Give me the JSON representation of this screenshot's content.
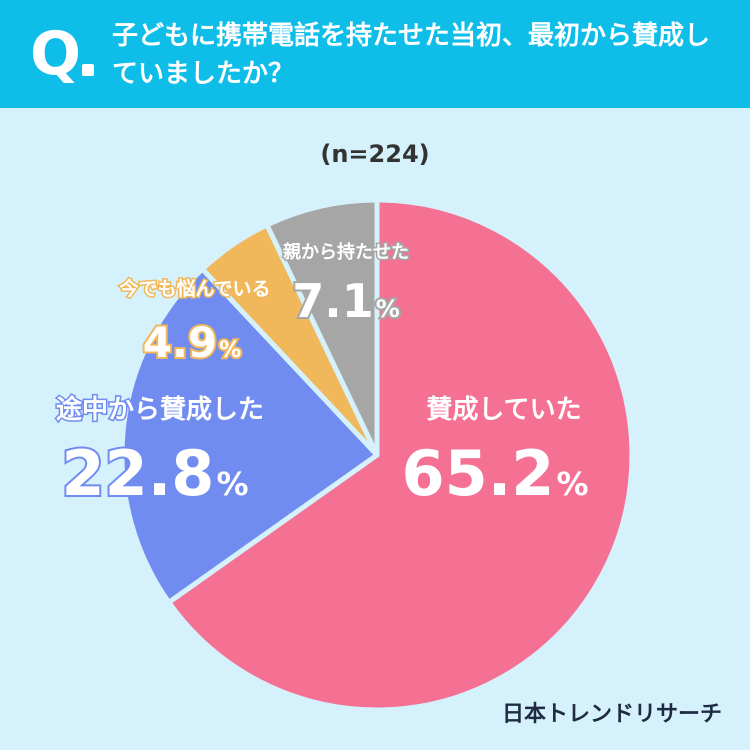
{
  "header": {
    "q_mark": "Q",
    "question": "子どもに携帯電話を持たせた当初、最初から賛成していましたか？"
  },
  "sample_size": "(n=224)",
  "brand": "日本トレンドリサーチ",
  "colors": {
    "background": "#d5f1fb",
    "header": "#0fbde9",
    "slice_border": "#d5f1fb"
  },
  "chart_data": {
    "type": "pie",
    "start": "12 o'clock, clockwise",
    "slices": [
      {
        "label": "賛成していた",
        "value": 65.2,
        "display": "65.2",
        "color": "#f47194",
        "text_color": "#ffffff"
      },
      {
        "label": "途中から賛成した",
        "value": 22.8,
        "display": "22.8",
        "color": "#708cf0",
        "text_color": "#ffffff"
      },
      {
        "label": "今でも悩んでいる",
        "value": 4.9,
        "display": "4.9",
        "color": "#f0b85a",
        "text_color": "#ffffff"
      },
      {
        "label": "親から持たせた",
        "value": 7.1,
        "display": "7.1",
        "color": "#a6a6a6",
        "text_color": "#ffffff"
      }
    ],
    "unit": "%"
  }
}
